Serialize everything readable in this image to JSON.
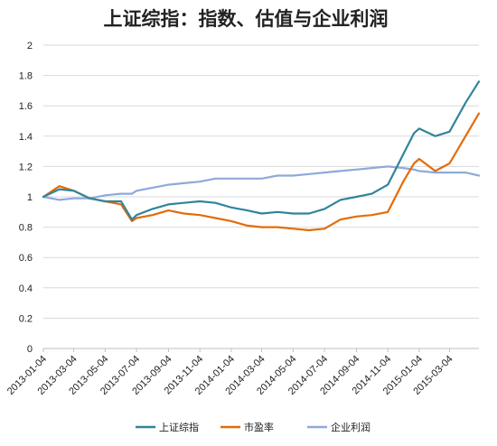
{
  "chart_data": {
    "type": "line",
    "title": "上证综指：指数、估值与企业利润",
    "xlabel": "",
    "ylabel": "",
    "ylim": [
      0,
      2
    ],
    "yticks": [
      "0",
      "0.2",
      "0.4",
      "0.6",
      "0.8",
      "1",
      "1.2",
      "1.4",
      "1.6",
      "1.8",
      "2"
    ],
    "xticks": [
      "2013-01-04",
      "2013-03-04",
      "2013-05-04",
      "2013-07-04",
      "2013-09-04",
      "2013-11-04",
      "2014-01-04",
      "2014-03-04",
      "2014-05-04",
      "2014-07-04",
      "2014-09-04",
      "2014-11-04",
      "2015-01-04",
      "2015-03-04"
    ],
    "grid": true,
    "legend_position": "bottom",
    "colors": {
      "上证综指": "#31849b",
      "市盈率": "#e36c09",
      "企业利润": "#8ea9db"
    },
    "x": [
      "2013-01-04",
      "2013-02-04",
      "2013-03-04",
      "2013-04-04",
      "2013-05-04",
      "2013-06-04",
      "2013-06-25",
      "2013-07-04",
      "2013-08-04",
      "2013-09-04",
      "2013-10-04",
      "2013-11-04",
      "2013-12-04",
      "2014-01-04",
      "2014-02-04",
      "2014-03-04",
      "2014-04-04",
      "2014-05-04",
      "2014-06-04",
      "2014-07-04",
      "2014-08-04",
      "2014-09-04",
      "2014-10-04",
      "2014-11-04",
      "2014-12-04",
      "2014-12-25",
      "2015-01-04",
      "2015-02-04",
      "2015-03-04",
      "2015-04-04",
      "2015-04-30"
    ],
    "series": [
      {
        "name": "上证综指",
        "values": [
          1.0,
          1.05,
          1.04,
          0.99,
          0.97,
          0.97,
          0.85,
          0.88,
          0.92,
          0.95,
          0.96,
          0.97,
          0.96,
          0.93,
          0.91,
          0.89,
          0.9,
          0.89,
          0.89,
          0.92,
          0.98,
          1.0,
          1.02,
          1.08,
          1.28,
          1.42,
          1.45,
          1.4,
          1.43,
          1.62,
          1.76
        ]
      },
      {
        "name": "市盈率",
        "values": [
          1.0,
          1.07,
          1.04,
          0.99,
          0.97,
          0.95,
          0.84,
          0.86,
          0.88,
          0.91,
          0.89,
          0.88,
          0.86,
          0.84,
          0.81,
          0.8,
          0.8,
          0.79,
          0.78,
          0.79,
          0.85,
          0.87,
          0.88,
          0.9,
          1.1,
          1.22,
          1.25,
          1.17,
          1.22,
          1.4,
          1.55
        ]
      },
      {
        "name": "企业利润",
        "values": [
          1.0,
          0.98,
          0.99,
          0.99,
          1.01,
          1.02,
          1.02,
          1.04,
          1.06,
          1.08,
          1.09,
          1.1,
          1.12,
          1.12,
          1.12,
          1.12,
          1.14,
          1.14,
          1.15,
          1.16,
          1.17,
          1.18,
          1.19,
          1.2,
          1.19,
          1.18,
          1.17,
          1.16,
          1.16,
          1.16,
          1.14
        ]
      }
    ]
  }
}
